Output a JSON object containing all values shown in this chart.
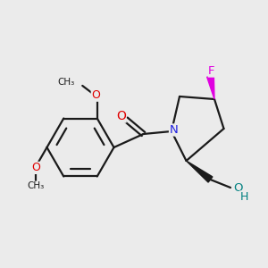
{
  "background_color": "#ebebeb",
  "bond_color": "#1a1a1a",
  "bond_width": 1.6,
  "atom_colors": {
    "O": "#e00000",
    "N": "#2020e0",
    "F": "#e000e0",
    "C": "#1a1a1a",
    "OH_teal": "#008080"
  },
  "layout": {
    "xlim": [
      0,
      10
    ],
    "ylim": [
      0,
      10
    ]
  }
}
